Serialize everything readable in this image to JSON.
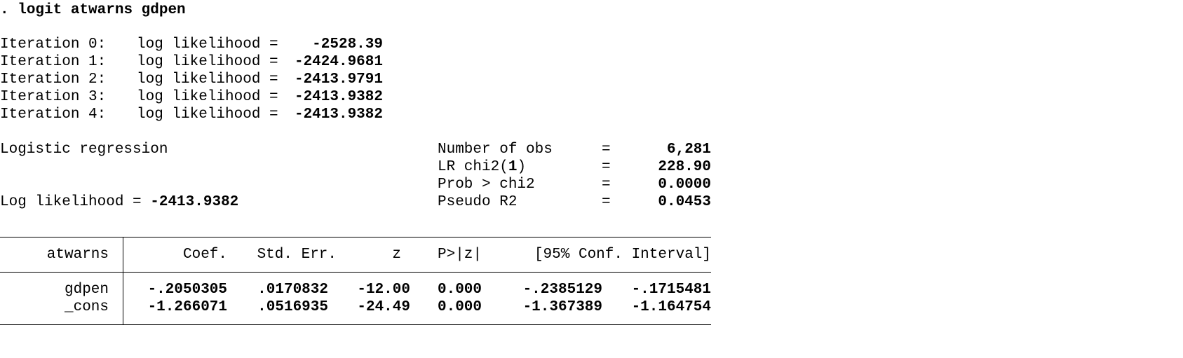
{
  "command": {
    "prompt": ". ",
    "text": "logit atwarns gdpen"
  },
  "iterations": [
    {
      "label": "Iteration 0:",
      "ll_label": "log likelihood =",
      "value": "-2528.39"
    },
    {
      "label": "Iteration 1:",
      "ll_label": "log likelihood =",
      "value": "-2424.9681"
    },
    {
      "label": "Iteration 2:",
      "ll_label": "log likelihood =",
      "value": "-2413.9791"
    },
    {
      "label": "Iteration 3:",
      "ll_label": "log likelihood =",
      "value": "-2413.9382"
    },
    {
      "label": "Iteration 4:",
      "ll_label": "log likelihood =",
      "value": "-2413.9382"
    }
  ],
  "model": {
    "title": "Logistic regression",
    "ll_label": "Log likelihood = ",
    "ll_value": "-2413.9382"
  },
  "stats": [
    {
      "label": "Number of obs",
      "eq": "=",
      "value": "6,281"
    },
    {
      "label_a": "LR chi2(",
      "label_df": "1",
      "label_b": ")",
      "eq": "=",
      "value": "228.90"
    },
    {
      "label": "Prob > chi2",
      "eq": "=",
      "value": "0.0000"
    },
    {
      "label": "Pseudo R2",
      "eq": "=",
      "value": "0.0453"
    }
  ],
  "table": {
    "depvar": "atwarns",
    "headers": {
      "coef": "Coef.",
      "se": "Std. Err.",
      "z": "z",
      "p": "P>|z|",
      "ci": "[95% Conf. Interval]"
    },
    "rows": [
      {
        "name": "gdpen",
        "coef": "-.2050305",
        "se": ".0170832",
        "z": "-12.00",
        "p": "0.000",
        "lo": "-.2385129",
        "hi": "-.1715481"
      },
      {
        "name": "_cons",
        "coef": "-1.266071",
        "se": ".0516935",
        "z": "-24.49",
        "p": "0.000",
        "lo": "-1.367389",
        "hi": "-1.164754"
      }
    ]
  }
}
